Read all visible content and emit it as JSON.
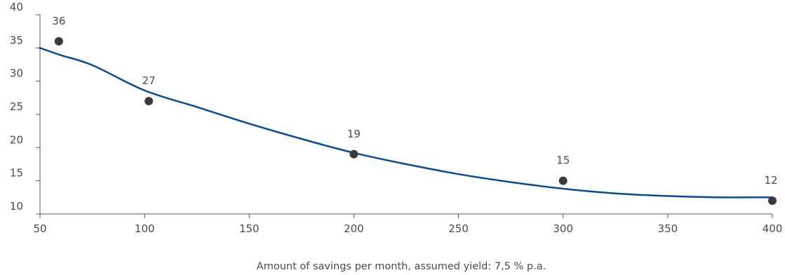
{
  "chart_data": {
    "type": "scatter",
    "title": "",
    "xlabel": "Amount of savings per month, assumed yield: 7,5 % p.a.",
    "ylabel": "",
    "xlim": [
      50,
      400
    ],
    "ylim": [
      10,
      40
    ],
    "x_ticks": [
      "50",
      "100",
      "150",
      "200",
      "250",
      "300",
      "350",
      "400"
    ],
    "y_ticks": [
      "10",
      "15",
      "20",
      "25",
      "30",
      "35",
      "40"
    ],
    "grid": false,
    "legend": "none",
    "points": [
      {
        "x": 59,
        "y": 36,
        "label": "36"
      },
      {
        "x": 102,
        "y": 27,
        "label": "27"
      },
      {
        "x": 200,
        "y": 19,
        "label": "19"
      },
      {
        "x": 300,
        "y": 15,
        "label": "15"
      },
      {
        "x": 400,
        "y": 12,
        "label": "12"
      }
    ],
    "trend_line": {
      "x": [
        50,
        60,
        75,
        100,
        125,
        150,
        175,
        200,
        225,
        250,
        275,
        300,
        325,
        350,
        375,
        390,
        400
      ],
      "y": [
        35,
        33.9,
        32.4,
        28.6,
        26.1,
        23.6,
        21.3,
        19.2,
        17.5,
        16.0,
        14.8,
        13.8,
        13.1,
        12.7,
        12.5,
        12.5,
        12.5
      ]
    },
    "colors": {
      "line": "#0d4a8a",
      "marker": "#3a3a3a",
      "axis": "#555555",
      "text": "#4a4a4a"
    }
  }
}
